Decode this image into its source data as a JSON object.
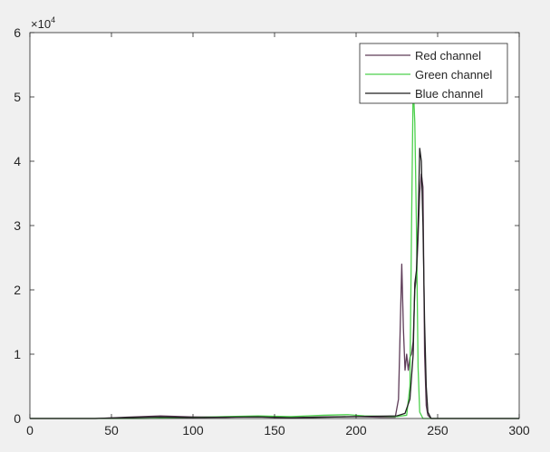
{
  "chart_data": {
    "type": "line",
    "title": "",
    "xlabel": "",
    "ylabel": "",
    "xlim": [
      0,
      300
    ],
    "ylim": [
      0,
      60000
    ],
    "xticks": [
      0,
      50,
      100,
      150,
      200,
      250,
      300
    ],
    "yticks": [
      0,
      10000,
      20000,
      30000,
      40000,
      50000,
      60000
    ],
    "ytick_labels": [
      "0",
      "1",
      "2",
      "3",
      "4",
      "5",
      "6"
    ],
    "y_exponent_label": "×10",
    "y_exponent_power": "4",
    "grid": false,
    "legend_position": "top-right",
    "series": [
      {
        "name": "Red channel",
        "color": "#5e3c58",
        "points": [
          [
            0,
            0
          ],
          [
            40,
            0
          ],
          [
            60,
            200
          ],
          [
            80,
            400
          ],
          [
            100,
            250
          ],
          [
            120,
            200
          ],
          [
            140,
            300
          ],
          [
            160,
            150
          ],
          [
            180,
            250
          ],
          [
            200,
            300
          ],
          [
            215,
            200
          ],
          [
            224,
            200
          ],
          [
            226,
            3000
          ],
          [
            228,
            24000
          ],
          [
            229,
            14000
          ],
          [
            230,
            7500
          ],
          [
            231,
            10000
          ],
          [
            232,
            7500
          ],
          [
            233,
            9500
          ],
          [
            234,
            10000
          ],
          [
            235,
            12000
          ],
          [
            236,
            20000
          ],
          [
            237,
            22000
          ],
          [
            238,
            28000
          ],
          [
            239,
            35000
          ],
          [
            240,
            38000
          ],
          [
            241,
            36000
          ],
          [
            242,
            10000
          ],
          [
            243,
            2000
          ],
          [
            244,
            500
          ],
          [
            246,
            0
          ],
          [
            300,
            0
          ]
        ]
      },
      {
        "name": "Green channel",
        "color": "#4cd04c",
        "points": [
          [
            0,
            0
          ],
          [
            70,
            0
          ],
          [
            100,
            150
          ],
          [
            120,
            300
          ],
          [
            140,
            400
          ],
          [
            160,
            300
          ],
          [
            180,
            500
          ],
          [
            195,
            600
          ],
          [
            205,
            400
          ],
          [
            225,
            300
          ],
          [
            231,
            500
          ],
          [
            233,
            5000
          ],
          [
            234,
            30000
          ],
          [
            235,
            52000
          ],
          [
            236,
            46000
          ],
          [
            237,
            30000
          ],
          [
            238,
            8000
          ],
          [
            239,
            1000
          ],
          [
            241,
            0
          ],
          [
            300,
            0
          ]
        ]
      },
      {
        "name": "Blue channel",
        "color": "#1f1f1f",
        "points": [
          [
            0,
            0
          ],
          [
            40,
            0
          ],
          [
            60,
            150
          ],
          [
            80,
            250
          ],
          [
            100,
            150
          ],
          [
            120,
            200
          ],
          [
            140,
            250
          ],
          [
            160,
            100
          ],
          [
            180,
            200
          ],
          [
            200,
            300
          ],
          [
            225,
            400
          ],
          [
            230,
            800
          ],
          [
            233,
            3000
          ],
          [
            235,
            10000
          ],
          [
            236,
            21000
          ],
          [
            237,
            23000
          ],
          [
            238,
            30000
          ],
          [
            239,
            42000
          ],
          [
            240,
            40000
          ],
          [
            241,
            30000
          ],
          [
            242,
            15000
          ],
          [
            243,
            5000
          ],
          [
            244,
            1000
          ],
          [
            246,
            0
          ],
          [
            300,
            0
          ]
        ]
      }
    ]
  }
}
